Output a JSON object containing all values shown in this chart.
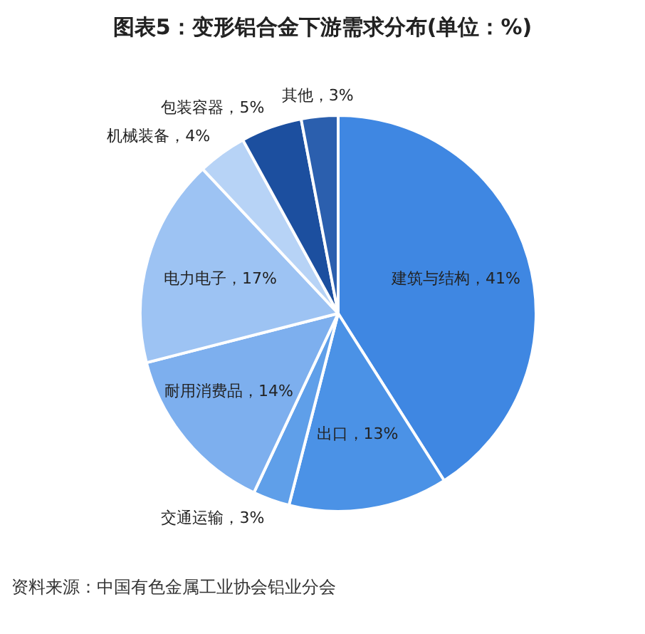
{
  "chart_data": {
    "type": "pie",
    "title": "图表5：变形铝合金下游需求分布(单位：%)",
    "categories": [
      "建筑与结构",
      "出口",
      "交通运输",
      "耐用消费品",
      "电力电子",
      "机械装备",
      "包装容器",
      "其他"
    ],
    "values": [
      41,
      13,
      3,
      14,
      17,
      4,
      5,
      3
    ],
    "value_labels": [
      "41%",
      "13%",
      "3%",
      "14%",
      "17%",
      "4%",
      "5%",
      "3%"
    ],
    "colors": [
      "#3f87e2",
      "#4b92e6",
      "#5f9fe9",
      "#7dafee",
      "#9dc3f3",
      "#b7d3f6",
      "#1c4f9f",
      "#2b5fae"
    ],
    "legend": false,
    "annotations": [
      "资料来源：中国有色金属工业协会铝业分会"
    ]
  }
}
